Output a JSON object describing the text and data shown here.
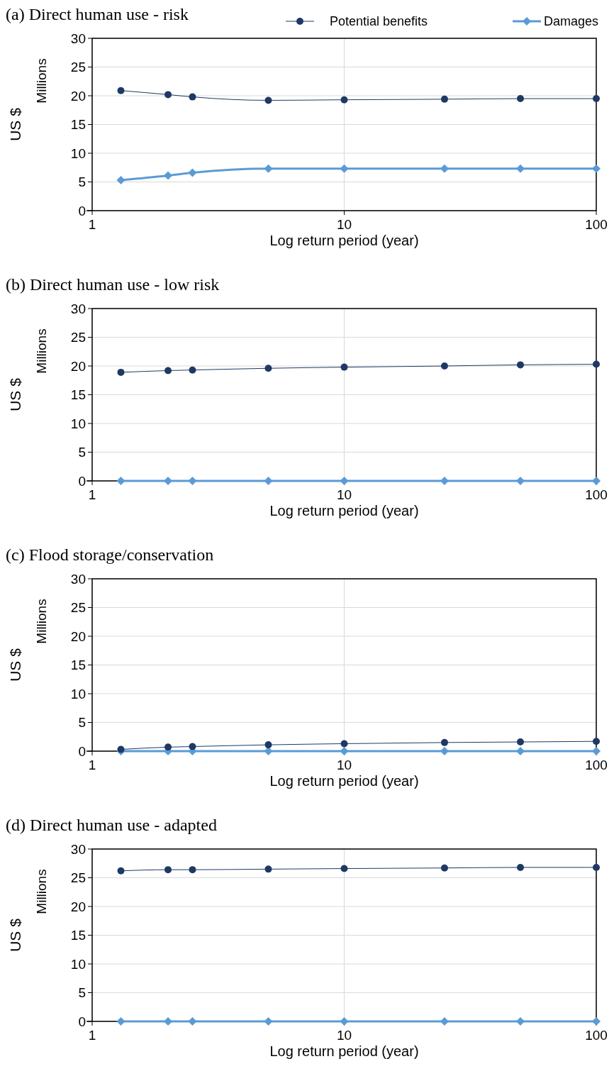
{
  "chart_data": [
    {
      "type": "line",
      "title": "(a) Direct human use - risk",
      "xlabel": "Log return period (year)",
      "ylabel": "US $",
      "annotations": [
        "Millions"
      ],
      "x": [
        1.3,
        2,
        2.5,
        5,
        10,
        25,
        50,
        100
      ],
      "log": "x",
      "xlim": [
        1,
        100
      ],
      "xticks": [
        1,
        10,
        100
      ],
      "ylim": [
        0,
        30
      ],
      "yticks": [
        0,
        5,
        10,
        15,
        20,
        25,
        30
      ],
      "grid": true,
      "legend": "top right",
      "series": [
        {
          "name": "Potential benefits",
          "color": "#1f3864",
          "marker": "circle",
          "values": [
            20.9,
            20.2,
            19.8,
            19.2,
            19.3,
            19.4,
            19.5,
            19.5
          ]
        },
        {
          "name": "Damages",
          "color": "#5b9bd5",
          "marker": "diamond",
          "values": [
            5.3,
            6.1,
            6.6,
            7.3,
            7.3,
            7.3,
            7.3,
            7.3
          ]
        }
      ]
    },
    {
      "type": "line",
      "title": "(b) Direct human use - low risk",
      "xlabel": "Log return period (year)",
      "ylabel": "US $",
      "annotations": [
        "Millions"
      ],
      "x": [
        1.3,
        2,
        2.5,
        5,
        10,
        25,
        50,
        100
      ],
      "log": "x",
      "xlim": [
        1,
        100
      ],
      "xticks": [
        1,
        10,
        100
      ],
      "ylim": [
        0,
        30
      ],
      "yticks": [
        0,
        5,
        10,
        15,
        20,
        25,
        30
      ],
      "grid": true,
      "series": [
        {
          "color": "#1f3864",
          "marker": "circle",
          "values": [
            18.9,
            19.2,
            19.3,
            19.6,
            19.8,
            20.0,
            20.2,
            20.3
          ]
        },
        {
          "color": "#5b9bd5",
          "marker": "diamond",
          "values": [
            0,
            0,
            0,
            0,
            0,
            0,
            0,
            0
          ]
        }
      ]
    },
    {
      "type": "line",
      "title": "(c) Flood storage/conservation",
      "xlabel": "Log return period (year)",
      "ylabel": "US $",
      "annotations": [
        "Millions"
      ],
      "x": [
        1.3,
        2,
        2.5,
        5,
        10,
        25,
        50,
        100
      ],
      "log": "x",
      "xlim": [
        1,
        100
      ],
      "xticks": [
        1,
        10,
        100
      ],
      "ylim": [
        0,
        30
      ],
      "yticks": [
        0,
        5,
        10,
        15,
        20,
        25,
        30
      ],
      "grid": true,
      "series": [
        {
          "color": "#1f3864",
          "marker": "circle",
          "values": [
            0.3,
            0.7,
            0.8,
            1.1,
            1.3,
            1.5,
            1.6,
            1.7
          ]
        },
        {
          "color": "#5b9bd5",
          "marker": "diamond",
          "values": [
            0,
            0,
            0,
            0,
            0,
            0,
            0,
            0
          ]
        }
      ]
    },
    {
      "type": "line",
      "title": "(d) Direct human use - adapted",
      "xlabel": "Log return period (year)",
      "ylabel": "US $",
      "annotations": [
        "Millions"
      ],
      "x": [
        1.3,
        2,
        2.5,
        5,
        10,
        25,
        50,
        100
      ],
      "log": "x",
      "xlim": [
        1,
        100
      ],
      "xticks": [
        1,
        10,
        100
      ],
      "ylim": [
        0,
        30
      ],
      "yticks": [
        0,
        5,
        10,
        15,
        20,
        25,
        30
      ],
      "grid": true,
      "series": [
        {
          "color": "#1f3864",
          "marker": "circle",
          "values": [
            26.2,
            26.4,
            26.4,
            26.5,
            26.6,
            26.7,
            26.8,
            26.8
          ]
        },
        {
          "color": "#5b9bd5",
          "marker": "diamond",
          "values": [
            0,
            0,
            0,
            0,
            0,
            0,
            0,
            0
          ]
        }
      ]
    }
  ]
}
